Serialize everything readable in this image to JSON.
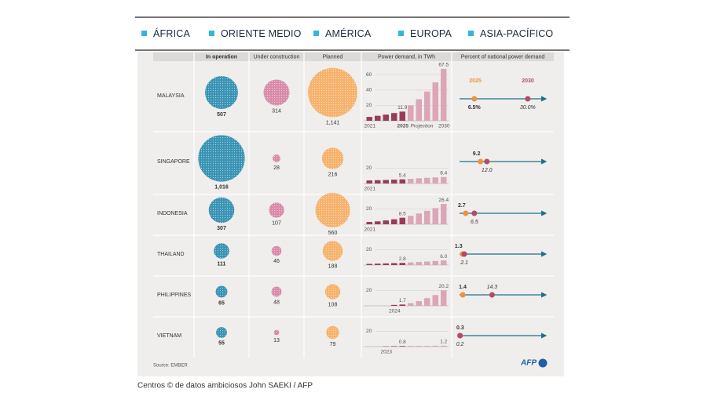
{
  "nav": [
    "ÁFRICA",
    "ORIENTE MEDIO",
    "AMÉRICA",
    "EUROPA",
    "ASIA-PACÍFICO"
  ],
  "chart_data": {
    "type": "bubble-table",
    "columns": [
      "In operation",
      "Under construction",
      "Planned",
      "Power demand, in TWh",
      "Percent of national power demand"
    ],
    "bubble_colors": [
      "#3a93b4",
      "#d98aa8",
      "#f6b26b"
    ],
    "bar_color": "#dca6b8",
    "bar_highlight_color": "#9c3a5c",
    "pct_xlim": [
      0,
      38
    ],
    "legend": [
      {
        "name": "2025",
        "color": "#f0923a"
      },
      {
        "name": "2030",
        "color": "#b34b68"
      }
    ],
    "rows": [
      {
        "name": "MALAYSIA",
        "bubbles": {
          "values": [
            507,
            314,
            1141
          ],
          "value_labels": [
            "507",
            "314",
            "1,141"
          ]
        },
        "power": {
          "categories": [
            "2021",
            null,
            null,
            null,
            "2025",
            null,
            null,
            null,
            null,
            "2030"
          ],
          "values": [
            5,
            6.5,
            8,
            10,
            11.9,
            20,
            28,
            38,
            50,
            67.5
          ],
          "value_labels": [
            null,
            null,
            null,
            null,
            "11.9",
            null,
            null,
            null,
            null,
            "67.5"
          ],
          "ylim": [
            0,
            70
          ],
          "yticks": [
            20,
            40,
            60
          ],
          "annotation": "Projection"
        },
        "percent": {
          "values": [
            6.5,
            30.0
          ],
          "value_labels": [
            "6.5%",
            "30.0%"
          ]
        }
      },
      {
        "name": "SINGAPORE",
        "bubbles": {
          "values": [
            1016,
            28,
            216
          ],
          "value_labels": [
            "1,016",
            "28",
            "216"
          ]
        },
        "power": {
          "categories": [
            "2021",
            null,
            null,
            null,
            null,
            null,
            null,
            null,
            null,
            null
          ],
          "values": [
            4,
            4.3,
            4.6,
            5,
            5.4,
            6,
            6.8,
            7.4,
            7.9,
            8.4
          ],
          "value_labels": [
            null,
            null,
            null,
            null,
            "5.4",
            null,
            null,
            null,
            null,
            "8.4"
          ],
          "ylim": [
            0,
            30
          ],
          "yticks": [
            20
          ]
        },
        "percent": {
          "values": [
            9.2,
            12.0
          ],
          "value_labels": [
            "9.2",
            "12.0"
          ]
        }
      },
      {
        "name": "INDONESIA",
        "bubbles": {
          "values": [
            307,
            107,
            560
          ],
          "value_labels": [
            "307",
            "107",
            "560"
          ]
        },
        "power": {
          "categories": [
            "2021",
            null,
            null,
            null,
            null,
            null,
            null,
            null,
            null,
            null
          ],
          "values": [
            3,
            3.8,
            5,
            6.5,
            8.5,
            11,
            14,
            17.5,
            21,
            26.4
          ],
          "value_labels": [
            null,
            null,
            null,
            null,
            "8.5",
            null,
            null,
            null,
            null,
            "26.4"
          ],
          "ylim": [
            0,
            30
          ],
          "yticks": [
            20
          ]
        },
        "percent": {
          "values": [
            2.7,
            6.5
          ],
          "value_labels": [
            "2.7",
            "6.5"
          ]
        }
      },
      {
        "name": "THAILAND",
        "bubbles": {
          "values": [
            111,
            46,
            188
          ],
          "value_labels": [
            "111",
            "46",
            "188"
          ]
        },
        "power": {
          "categories": [
            null,
            null,
            null,
            null,
            null,
            null,
            null,
            null,
            null,
            null
          ],
          "values": [
            1.5,
            1.8,
            2.1,
            2.5,
            2.8,
            3.4,
            4,
            4.6,
            5.3,
            6.0
          ],
          "value_labels": [
            null,
            null,
            null,
            null,
            "2.8",
            null,
            null,
            null,
            null,
            "6.0"
          ],
          "ylim": [
            0,
            30
          ],
          "yticks": [
            20
          ]
        },
        "percent": {
          "values": [
            1.3,
            2.1
          ],
          "value_labels": [
            "1.3",
            "2.1"
          ]
        }
      },
      {
        "name": "PHILIPPINES",
        "bubbles": {
          "values": [
            65,
            48,
            108
          ],
          "value_labels": [
            "65",
            "48",
            "108"
          ]
        },
        "power": {
          "categories": [
            null,
            null,
            null,
            "2024",
            null,
            null,
            null,
            null,
            null,
            null
          ],
          "values": [
            null,
            null,
            null,
            1.2,
            1.7,
            3.5,
            6,
            10,
            14,
            20.2
          ],
          "value_labels": [
            null,
            null,
            null,
            null,
            "1.7",
            null,
            null,
            null,
            null,
            "20.2"
          ],
          "ylim": [
            0,
            30
          ],
          "yticks": [
            20
          ]
        },
        "percent": {
          "values": [
            1.4,
            14.3
          ],
          "value_labels": [
            "1.4",
            "14.3"
          ]
        }
      },
      {
        "name": "VIETNAM",
        "bubbles": {
          "values": [
            55,
            13,
            79
          ],
          "value_labels": [
            "55",
            "13",
            "79"
          ]
        },
        "power": {
          "categories": [
            null,
            null,
            "2023",
            null,
            null,
            null,
            null,
            null,
            null,
            null
          ],
          "values": [
            null,
            null,
            0.4,
            0.6,
            0.8,
            0.9,
            1,
            1,
            1.1,
            1.2
          ],
          "value_labels": [
            null,
            null,
            null,
            null,
            "0.8",
            null,
            null,
            null,
            null,
            "1.2"
          ],
          "ylim": [
            0,
            30
          ],
          "yticks": [
            20
          ]
        },
        "percent": {
          "values": [
            0.3,
            0.2
          ],
          "value_labels": [
            "0.3",
            "0.2"
          ]
        }
      }
    ],
    "source": "Source: EMBER"
  },
  "logo": "AFP",
  "caption": "Centros © de datos ambiciosos John SAEKI / AFP"
}
